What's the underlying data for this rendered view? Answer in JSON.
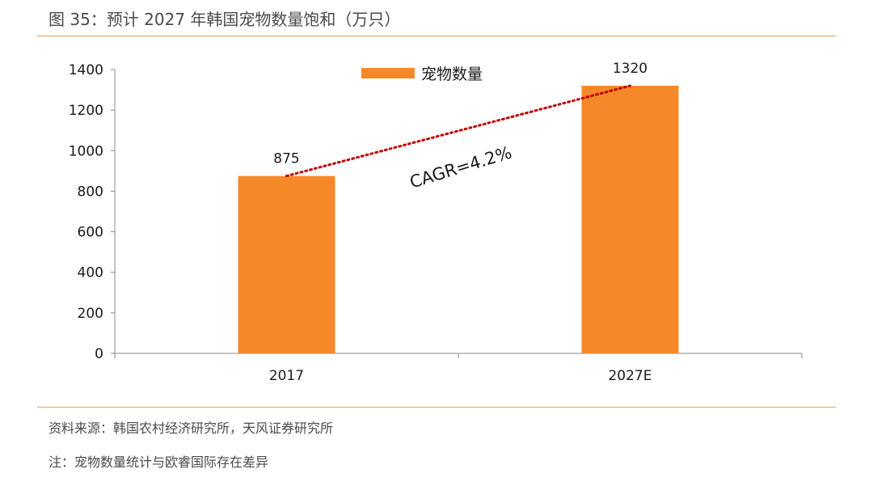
{
  "figure": {
    "title": "图 35：预计 2027 年韩国宠物数量饱和（万只）"
  },
  "footer": {
    "source": "资料来源：韩国农村经济研究所，天风证券研究所",
    "note": "注：宠物数量统计与欧睿国际存在差异"
  },
  "annotation": {
    "cagr": "CAGR=4.2%"
  },
  "colors": {
    "bar": "#f5892a",
    "trend": "#c00000",
    "rule": "#e8a355",
    "axis": "#888888"
  },
  "chart_data": {
    "type": "bar",
    "title": "",
    "xlabel": "",
    "ylabel": "",
    "categories": [
      "2017",
      "2027E"
    ],
    "series": [
      {
        "name": "宠物数量",
        "values": [
          875,
          1320
        ]
      }
    ],
    "ylim": [
      0,
      1400
    ],
    "yticks": [
      "0",
      "200",
      "400",
      "600",
      "800",
      "1000",
      "1200",
      "1400"
    ],
    "data_labels": [
      "875",
      "1320"
    ],
    "legend": "top-center",
    "grid": false
  }
}
